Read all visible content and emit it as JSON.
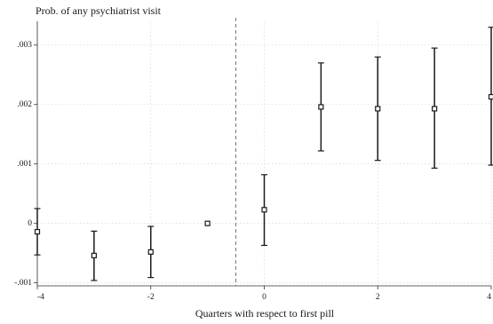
{
  "chart_data": {
    "type": "scatter",
    "ylabel": "Prob. of any psychiatrist visit",
    "xlabel": "Quarters with respect to first pill",
    "xlim": [
      -4,
      4
    ],
    "ylim": [
      -0.00105,
      0.0034
    ],
    "xticks": [
      -4,
      -2,
      0,
      2,
      4
    ],
    "xtick_labels": [
      "-4",
      "-2",
      "0",
      "2",
      "4"
    ],
    "yticks": [
      -0.001,
      0,
      0.001,
      0.002,
      0.003
    ],
    "ytick_labels": [
      "-.001",
      "0",
      ".001",
      ".002",
      ".003"
    ],
    "reference_line_x": -0.5,
    "grid": true,
    "series": [
      {
        "x": [
          -4,
          -3,
          -2,
          -1,
          0,
          1,
          2,
          3,
          4
        ],
        "estimate": [
          -0.00014,
          -0.00054,
          -0.00048,
          0.0,
          0.00023,
          0.00196,
          0.00193,
          0.00193,
          0.00213
        ],
        "ci_low": [
          -0.00053,
          -0.00096,
          -0.00091,
          0.0,
          -0.00037,
          0.00122,
          0.00106,
          0.00093,
          0.00098
        ],
        "ci_high": [
          0.00025,
          -0.00013,
          -5e-05,
          0.0,
          0.00082,
          0.0027,
          0.0028,
          0.00295,
          0.0033
        ]
      }
    ]
  }
}
